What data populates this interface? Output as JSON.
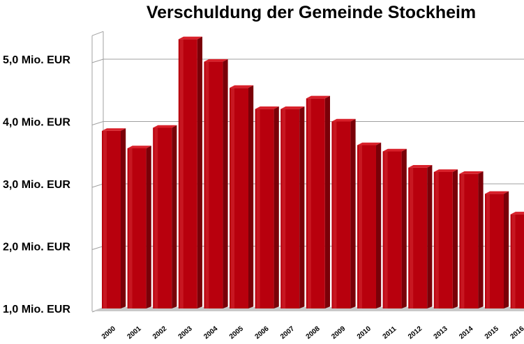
{
  "chart_data": {
    "type": "bar",
    "title": "Verschuldung der Gemeinde Stockheim",
    "xlabel": "",
    "ylabel": "",
    "categories": [
      "2000",
      "2001",
      "2002",
      "2003",
      "2004",
      "2005",
      "2006",
      "2007",
      "2008",
      "2009",
      "2010",
      "2011",
      "2012",
      "2013",
      "2014",
      "2015",
      "2016"
    ],
    "values": [
      3.85,
      3.57,
      3.9,
      5.32,
      4.96,
      4.54,
      4.2,
      4.2,
      4.37,
      4.0,
      3.62,
      3.52,
      3.26,
      3.19,
      3.16,
      2.84,
      2.51
    ],
    "ylim": [
      1.0,
      5.4
    ],
    "yticks": [
      1.0,
      2.0,
      3.0,
      4.0,
      5.0
    ],
    "ytick_labels": [
      "1,0 Mio. EUR",
      "2,0 Mio. EUR",
      "3,0 Mio. EUR",
      "4,0 Mio. EUR",
      "5,0 Mio. EUR"
    ],
    "grid": true,
    "legend": "none",
    "colors": {
      "bar_front": "#b8000d",
      "bar_side": "#7a0008",
      "bar_top": "#d8202a",
      "grid": "#a0a0a0",
      "floor": "#c8c8c8"
    }
  }
}
